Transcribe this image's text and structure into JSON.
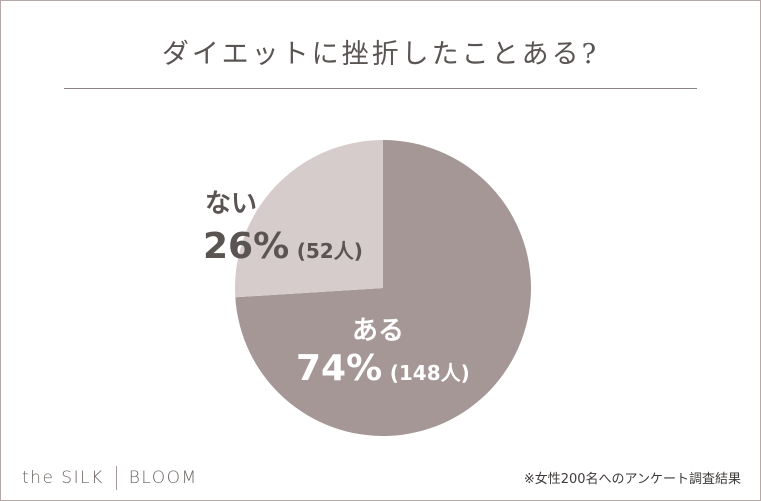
{
  "chart_data": {
    "type": "pie",
    "title": "ダイエットに挫折したことある?",
    "slices": [
      {
        "label": "ある",
        "percent": "74%",
        "count": "(148人)",
        "value": 74,
        "color": "#a59796"
      },
      {
        "label": "ない",
        "percent": "26%",
        "count": "(52人)",
        "value": 26,
        "color": "#d6cccb"
      }
    ],
    "start": "12 o'clock",
    "direction": "clockwise"
  },
  "brand": {
    "left": "the SILK",
    "right": "BLOOM"
  },
  "footnote": "※女性200名へのアンケート調査結果"
}
